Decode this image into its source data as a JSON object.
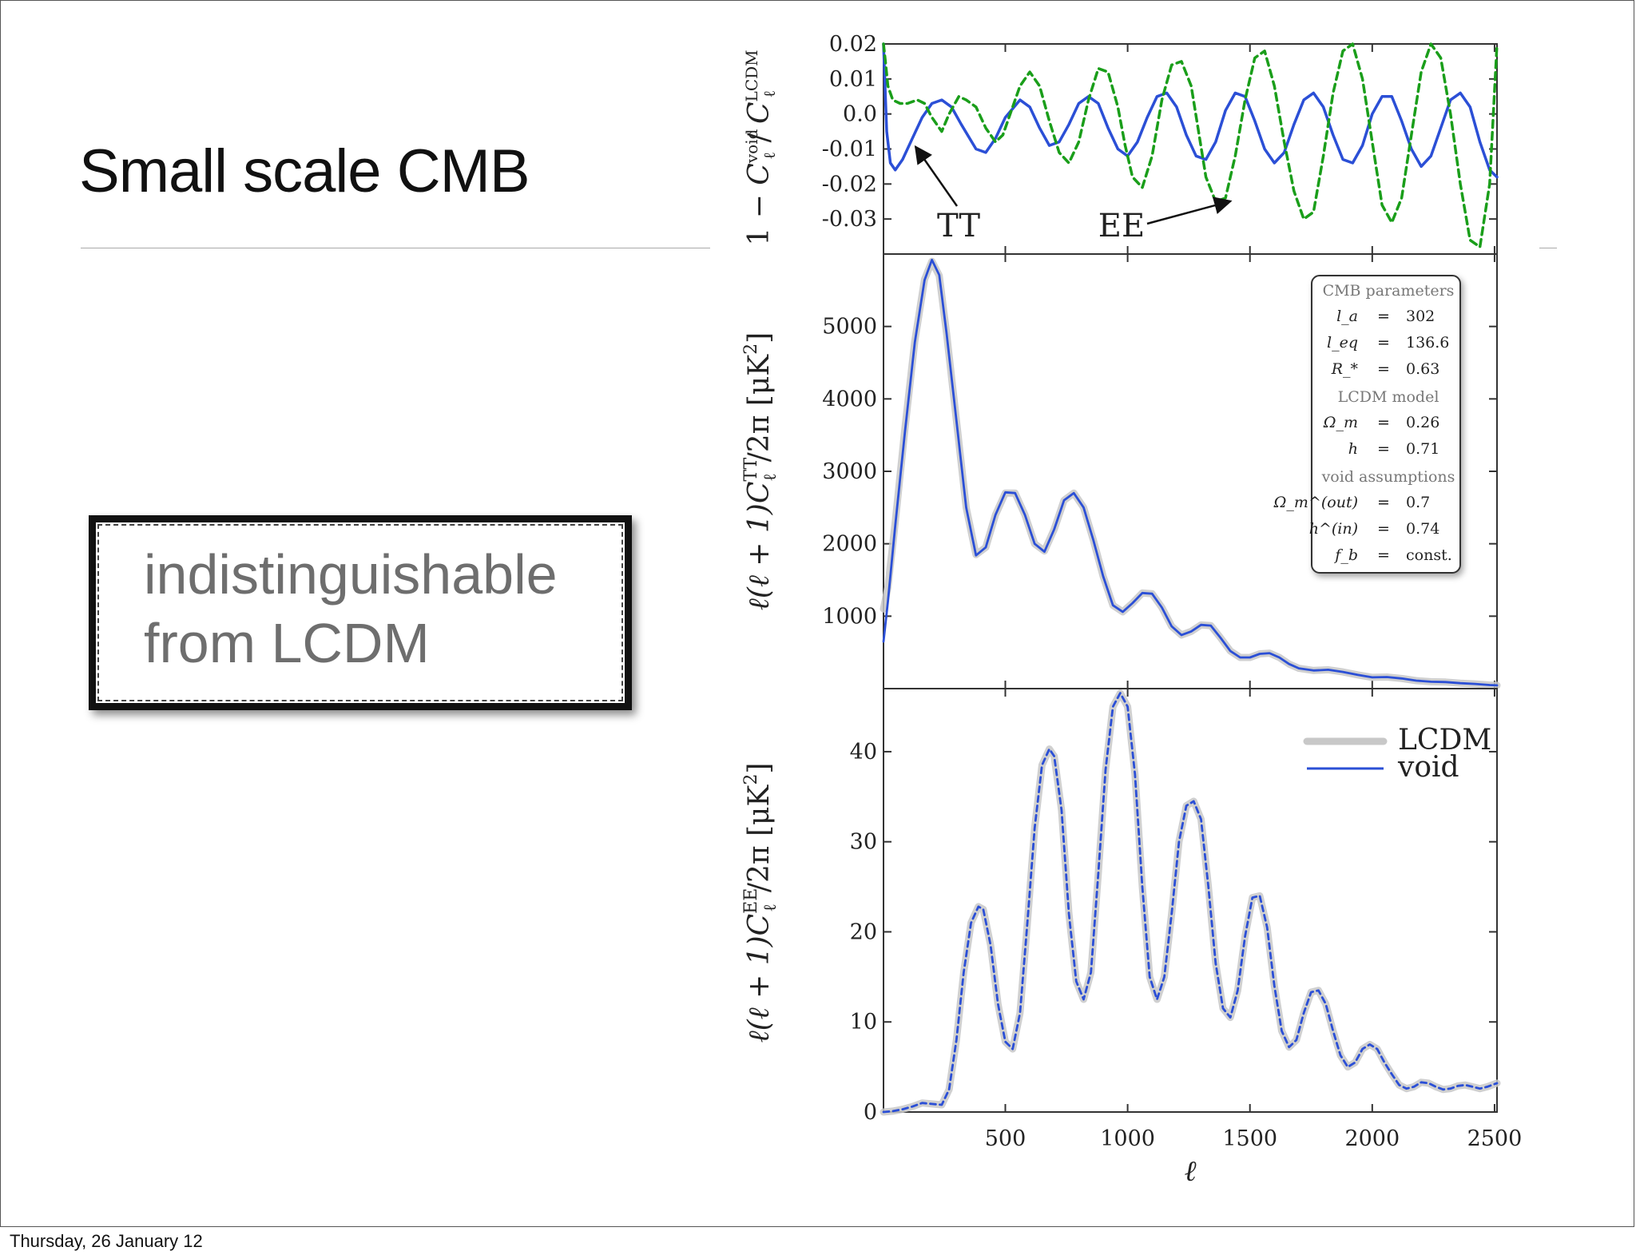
{
  "slide": {
    "title": "Small scale CMB",
    "callout_lines": [
      "indistinguishable",
      "from LCDM"
    ],
    "footer_date": "Thursday, 26 January 12"
  },
  "colors": {
    "void": "#2b4fd6",
    "lcdm": "#c8c8c8",
    "ee_ratio": "#1a9e1a",
    "tt_ratio": "#2b4fd6"
  },
  "chart_data": [
    {
      "type": "line",
      "panel": "ratio",
      "ylabel": "1 − C_ℓ^void / C_ℓ^LCDM",
      "ylabel_parts": [
        "1 −",
        "C",
        "void",
        "ℓ",
        "C",
        "LCDM",
        "ℓ"
      ],
      "xlim": [
        2,
        2510
      ],
      "ylim": [
        -0.04,
        0.02
      ],
      "yticks": [
        0.02,
        0.01,
        0.0,
        -0.01,
        -0.02,
        -0.03
      ],
      "ytick_labels": [
        "0.02",
        "0.01",
        "0.0",
        "-0.01",
        "-0.02",
        "-0.03"
      ],
      "series": [
        {
          "name": "TT",
          "style": "solid",
          "x": [
            2,
            15,
            30,
            50,
            80,
            120,
            160,
            200,
            240,
            280,
            320,
            380,
            420,
            460,
            500,
            560,
            600,
            640,
            680,
            720,
            760,
            800,
            840,
            880,
            920,
            960,
            1000,
            1040,
            1080,
            1120,
            1160,
            1200,
            1240,
            1280,
            1320,
            1360,
            1400,
            1440,
            1480,
            1520,
            1560,
            1600,
            1640,
            1680,
            1720,
            1760,
            1800,
            1840,
            1880,
            1920,
            1960,
            2000,
            2040,
            2080,
            2120,
            2160,
            2200,
            2240,
            2280,
            2320,
            2360,
            2400,
            2440,
            2480,
            2510
          ],
          "y": [
            0.02,
            -0.005,
            -0.014,
            -0.016,
            -0.013,
            -0.007,
            -0.001,
            0.003,
            0.004,
            0.002,
            -0.003,
            -0.01,
            -0.011,
            -0.007,
            -0.001,
            0.004,
            0.002,
            -0.004,
            -0.009,
            -0.008,
            -0.003,
            0.003,
            0.005,
            0.003,
            -0.004,
            -0.01,
            -0.012,
            -0.008,
            -0.001,
            0.005,
            0.006,
            0.002,
            -0.006,
            -0.012,
            -0.013,
            -0.008,
            0.001,
            0.006,
            0.005,
            -0.002,
            -0.01,
            -0.014,
            -0.011,
            -0.003,
            0.004,
            0.006,
            0.002,
            -0.006,
            -0.013,
            -0.014,
            -0.009,
            0.0,
            0.005,
            0.005,
            -0.002,
            -0.01,
            -0.015,
            -0.012,
            -0.004,
            0.004,
            0.006,
            0.002,
            -0.008,
            -0.016,
            -0.018
          ]
        },
        {
          "name": "EE",
          "style": "dashed",
          "x": [
            2,
            10,
            20,
            40,
            70,
            100,
            140,
            170,
            200,
            240,
            270,
            310,
            340,
            380,
            420,
            460,
            490,
            520,
            560,
            600,
            640,
            680,
            720,
            760,
            800,
            840,
            880,
            920,
            960,
            990,
            1020,
            1060,
            1100,
            1140,
            1180,
            1220,
            1260,
            1290,
            1320,
            1360,
            1400,
            1440,
            1480,
            1520,
            1560,
            1600,
            1640,
            1680,
            1720,
            1760,
            1800,
            1840,
            1880,
            1920,
            1960,
            2000,
            2040,
            2080,
            2120,
            2160,
            2200,
            2240,
            2280,
            2320,
            2360,
            2400,
            2440,
            2480,
            2510
          ],
          "y": [
            0.02,
            0.015,
            0.008,
            0.004,
            0.003,
            0.003,
            0.004,
            0.003,
            -0.001,
            -0.005,
            0.0,
            0.005,
            0.004,
            0.002,
            -0.004,
            -0.008,
            -0.006,
            0.0,
            0.008,
            0.012,
            0.008,
            -0.002,
            -0.011,
            -0.014,
            -0.008,
            0.004,
            0.013,
            0.012,
            0.002,
            -0.009,
            -0.018,
            -0.021,
            -0.012,
            0.004,
            0.014,
            0.015,
            0.008,
            -0.005,
            -0.018,
            -0.025,
            -0.024,
            -0.012,
            0.004,
            0.016,
            0.018,
            0.008,
            -0.008,
            -0.022,
            -0.03,
            -0.028,
            -0.012,
            0.006,
            0.018,
            0.02,
            0.01,
            -0.008,
            -0.026,
            -0.031,
            -0.024,
            -0.006,
            0.012,
            0.02,
            0.016,
            0.0,
            -0.02,
            -0.036,
            -0.038,
            -0.02,
            0.02
          ]
        }
      ],
      "annotations": [
        {
          "text": "TT",
          "target_x": 120,
          "target_y": -0.008
        },
        {
          "text": "EE",
          "target_x": 1440,
          "target_y": -0.024
        }
      ]
    },
    {
      "type": "line",
      "panel": "TT",
      "ylabel": "ℓ(ℓ+1) C_ℓ^TT / 2π [μK²]",
      "ylabel_parts": [
        "ℓ(ℓ + 1)C",
        "TT",
        "ℓ",
        "/2π [μK",
        "2",
        "]"
      ],
      "xlim": [
        2,
        2510
      ],
      "ylim": [
        0,
        6000
      ],
      "yticks": [
        1000,
        2000,
        3000,
        4000,
        5000
      ],
      "ytick_labels": [
        "1000",
        "2000",
        "3000",
        "4000",
        "5000"
      ],
      "series": [
        {
          "name": "LCDM",
          "x": [
            2,
            20,
            50,
            90,
            130,
            170,
            200,
            230,
            260,
            300,
            340,
            380,
            420,
            460,
            500,
            540,
            580,
            620,
            660,
            700,
            740,
            780,
            820,
            860,
            900,
            940,
            980,
            1020,
            1060,
            1100,
            1140,
            1180,
            1220,
            1260,
            1300,
            1340,
            1380,
            1420,
            1460,
            1500,
            1540,
            1580,
            1620,
            1660,
            1700,
            1760,
            1820,
            1880,
            1940,
            2000,
            2060,
            2120,
            2180,
            2240,
            2300,
            2360,
            2420,
            2480,
            2510
          ],
          "y": [
            1100,
            1400,
            2300,
            3600,
            4800,
            5650,
            5900,
            5700,
            4900,
            3700,
            2500,
            1850,
            1950,
            2400,
            2700,
            2700,
            2400,
            2000,
            1900,
            2200,
            2600,
            2700,
            2500,
            2050,
            1550,
            1150,
            1060,
            1180,
            1320,
            1310,
            1120,
            860,
            740,
            790,
            880,
            870,
            700,
            520,
            430,
            430,
            480,
            490,
            430,
            340,
            280,
            250,
            260,
            230,
            190,
            155,
            160,
            140,
            110,
            95,
            90,
            75,
            65,
            50,
            45
          ]
        },
        {
          "name": "void",
          "x": [
            2,
            20,
            50,
            90,
            130,
            170,
            200,
            230,
            260,
            300,
            340,
            380,
            420,
            460,
            500,
            540,
            580,
            620,
            660,
            700,
            740,
            780,
            820,
            860,
            900,
            940,
            980,
            1020,
            1060,
            1100,
            1140,
            1180,
            1220,
            1260,
            1300,
            1340,
            1380,
            1420,
            1460,
            1500,
            1540,
            1580,
            1620,
            1660,
            1700,
            1760,
            1820,
            1880,
            1940,
            2000,
            2060,
            2120,
            2180,
            2240,
            2300,
            2360,
            2420,
            2480,
            2510
          ],
          "y": [
            650,
            1200,
            2250,
            3550,
            4780,
            5640,
            5920,
            5710,
            4900,
            3700,
            2500,
            1840,
            1950,
            2400,
            2710,
            2700,
            2400,
            2000,
            1890,
            2200,
            2600,
            2700,
            2500,
            2050,
            1550,
            1150,
            1060,
            1180,
            1320,
            1310,
            1120,
            860,
            740,
            790,
            880,
            870,
            700,
            520,
            430,
            430,
            480,
            490,
            430,
            340,
            280,
            250,
            260,
            230,
            190,
            155,
            160,
            140,
            110,
            95,
            90,
            75,
            65,
            50,
            45
          ]
        }
      ],
      "legend_box": {
        "sections": [
          {
            "heading": "CMB parameters",
            "rows": [
              {
                "symbol": "l_a",
                "op": "=",
                "value": "302"
              },
              {
                "symbol": "l_eq",
                "op": "=",
                "value": "136.6"
              },
              {
                "symbol": "R_*",
                "op": "=",
                "value": "0.63"
              }
            ]
          },
          {
            "heading": "LCDM model",
            "rows": [
              {
                "symbol": "Ω_m",
                "op": "=",
                "value": "0.26"
              },
              {
                "symbol": "h",
                "op": "=",
                "value": "0.71"
              }
            ]
          },
          {
            "heading": "void assumptions",
            "rows": [
              {
                "symbol": "Ω_m^(out)",
                "op": "=",
                "value": "0.7"
              },
              {
                "symbol": "h^(in)",
                "op": "=",
                "value": "0.74"
              },
              {
                "symbol": "f_b",
                "op": "=",
                "value": "const."
              }
            ]
          }
        ],
        "placement": "top-right"
      }
    },
    {
      "type": "line",
      "panel": "EE",
      "xlabel": "ℓ",
      "ylabel": "ℓ(ℓ+1) C_ℓ^EE / 2π [μK²]",
      "ylabel_parts": [
        "ℓ(ℓ + 1)C",
        "EE",
        "ℓ",
        "/2π [μK",
        "2",
        "]"
      ],
      "xlim": [
        2,
        2510
      ],
      "ylim": [
        0,
        47
      ],
      "xticks": [
        500,
        1000,
        1500,
        2000,
        2500
      ],
      "xtick_labels": [
        "500",
        "1000",
        "1500",
        "2000",
        "2500"
      ],
      "yticks": [
        0,
        10,
        20,
        30,
        40
      ],
      "ytick_labels": [
        "0",
        "10",
        "20",
        "30",
        "40"
      ],
      "legend": {
        "placement": "top-right",
        "entries": [
          "LCDM",
          "void"
        ]
      },
      "series": [
        {
          "name": "LCDM",
          "x": [
            2,
            40,
            80,
            120,
            160,
            200,
            240,
            270,
            300,
            330,
            360,
            390,
            410,
            440,
            470,
            500,
            530,
            560,
            590,
            620,
            650,
            680,
            700,
            730,
            760,
            790,
            820,
            850,
            880,
            910,
            940,
            970,
            1000,
            1030,
            1060,
            1090,
            1120,
            1150,
            1180,
            1210,
            1240,
            1270,
            1300,
            1330,
            1360,
            1390,
            1420,
            1450,
            1480,
            1510,
            1540,
            1570,
            1600,
            1630,
            1660,
            1690,
            1720,
            1750,
            1780,
            1810,
            1840,
            1870,
            1900,
            1930,
            1960,
            1990,
            2020,
            2050,
            2080,
            2110,
            2140,
            2170,
            2200,
            2230,
            2260,
            2290,
            2320,
            2350,
            2380,
            2410,
            2440,
            2470,
            2510
          ],
          "y": [
            0.0,
            0.1,
            0.3,
            0.6,
            1.0,
            0.9,
            0.8,
            2.5,
            8.0,
            15.5,
            21.0,
            22.8,
            22.5,
            18.5,
            12.0,
            7.8,
            7.0,
            11.0,
            21.0,
            31.5,
            38.5,
            40.3,
            39.5,
            33.5,
            22.0,
            14.5,
            12.5,
            15.5,
            26.5,
            38.0,
            45.0,
            46.5,
            45.0,
            37.5,
            25.0,
            15.0,
            12.5,
            15.0,
            22.0,
            30.0,
            34.0,
            34.5,
            32.5,
            25.0,
            16.5,
            11.5,
            10.5,
            13.5,
            19.5,
            23.8,
            24.0,
            20.5,
            14.0,
            9.0,
            7.2,
            8.0,
            11.0,
            13.3,
            13.5,
            12.0,
            9.0,
            6.3,
            5.0,
            5.5,
            7.0,
            7.5,
            7.0,
            5.5,
            4.2,
            3.0,
            2.6,
            2.8,
            3.3,
            3.2,
            2.8,
            2.5,
            2.6,
            2.9,
            3.0,
            2.8,
            2.6,
            2.8,
            3.2
          ]
        },
        {
          "name": "void",
          "x": [
            2,
            40,
            80,
            120,
            160,
            200,
            240,
            270,
            300,
            330,
            360,
            390,
            410,
            440,
            470,
            500,
            530,
            560,
            590,
            620,
            650,
            680,
            700,
            730,
            760,
            790,
            820,
            850,
            880,
            910,
            940,
            970,
            1000,
            1030,
            1060,
            1090,
            1120,
            1150,
            1180,
            1210,
            1240,
            1270,
            1300,
            1330,
            1360,
            1390,
            1420,
            1450,
            1480,
            1510,
            1540,
            1570,
            1600,
            1630,
            1660,
            1690,
            1720,
            1750,
            1780,
            1810,
            1840,
            1870,
            1900,
            1930,
            1960,
            1990,
            2020,
            2050,
            2080,
            2110,
            2140,
            2170,
            2200,
            2230,
            2260,
            2290,
            2320,
            2350,
            2380,
            2410,
            2440,
            2470,
            2510
          ],
          "y": [
            0.0,
            0.1,
            0.3,
            0.6,
            1.0,
            0.9,
            0.8,
            2.5,
            8.0,
            15.5,
            21.0,
            22.8,
            22.5,
            18.5,
            12.0,
            7.8,
            7.0,
            11.0,
            21.0,
            31.5,
            38.5,
            40.3,
            39.5,
            33.5,
            22.0,
            14.5,
            12.5,
            15.5,
            26.5,
            38.0,
            45.0,
            46.5,
            45.0,
            37.5,
            25.0,
            15.0,
            12.5,
            15.0,
            22.0,
            30.0,
            34.0,
            34.5,
            32.5,
            25.0,
            16.5,
            11.5,
            10.5,
            13.5,
            19.5,
            23.8,
            24.0,
            20.5,
            14.0,
            9.0,
            7.2,
            8.0,
            11.0,
            13.3,
            13.5,
            12.0,
            9.0,
            6.3,
            5.0,
            5.5,
            7.0,
            7.5,
            7.0,
            5.5,
            4.2,
            3.0,
            2.6,
            2.8,
            3.3,
            3.2,
            2.8,
            2.5,
            2.6,
            2.9,
            3.0,
            2.8,
            2.6,
            2.8,
            3.2
          ]
        }
      ]
    }
  ]
}
